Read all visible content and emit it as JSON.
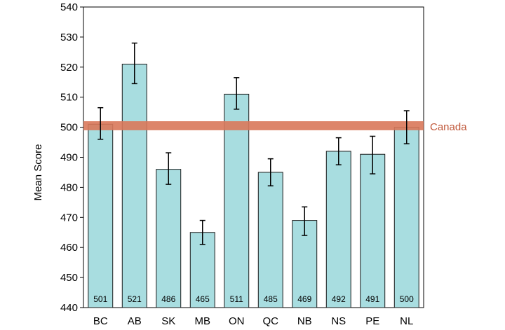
{
  "chart_data": {
    "type": "bar",
    "title": "",
    "xlabel": "",
    "ylabel": "Mean Score",
    "ylim": [
      440,
      540
    ],
    "yticks": [
      440,
      450,
      460,
      470,
      480,
      490,
      500,
      510,
      520,
      530,
      540
    ],
    "grid": false,
    "categories": [
      "BC",
      "AB",
      "SK",
      "MB",
      "ON",
      "QC",
      "NB",
      "NS",
      "PE",
      "NL"
    ],
    "values": [
      501,
      521,
      486,
      465,
      511,
      485,
      469,
      492,
      491,
      500
    ],
    "error_low": [
      496,
      514.5,
      481,
      461,
      506,
      480.5,
      464,
      487.5,
      484.5,
      494.5
    ],
    "error_high": [
      506.5,
      528,
      491.5,
      469,
      516.5,
      489.5,
      473.5,
      496.5,
      497,
      505.5
    ],
    "reference_band": {
      "label": "Canada",
      "low": 499,
      "high": 502
    },
    "colors": {
      "bar": "#a8dde0",
      "bar_stroke": "#1a1a1a",
      "band": "#d9785a",
      "band_label": "#c0583a",
      "error": "#000000"
    }
  }
}
